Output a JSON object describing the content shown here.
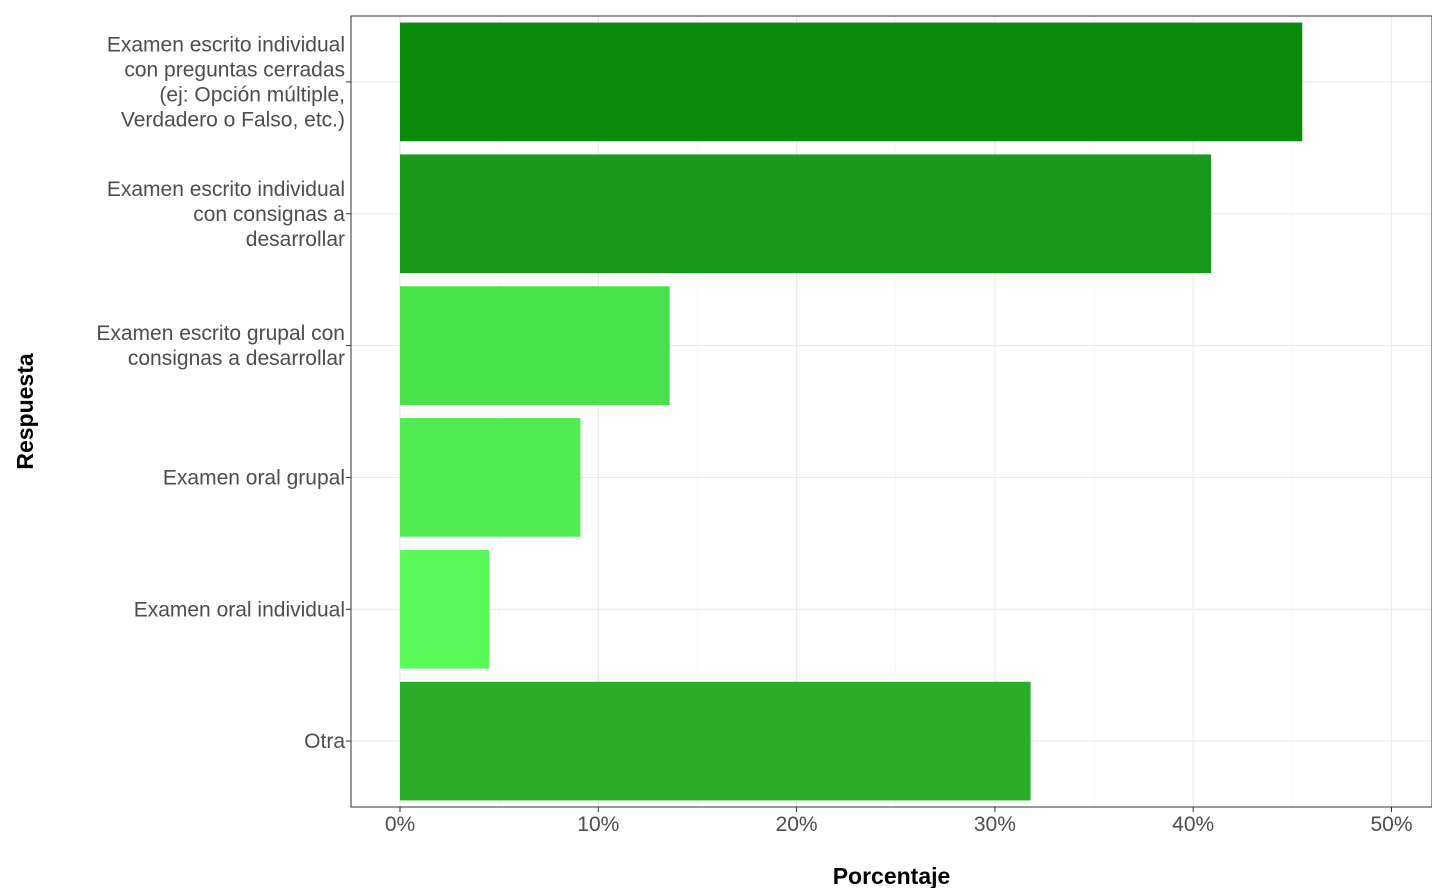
{
  "chart_data": {
    "type": "bar",
    "orientation": "horizontal",
    "xlabel": "Porcentaje",
    "ylabel": "Respuesta",
    "xlim": [
      0,
      50
    ],
    "x_ticks": [
      "0%",
      "10%",
      "20%",
      "30%",
      "40%",
      "50%"
    ],
    "grid": true,
    "categories": [
      [
        "Examen escrito individual",
        "con preguntas cerradas",
        "(ej: Opción múltiple,",
        "Verdadero o Falso, etc.)"
      ],
      [
        "Examen escrito individual",
        "con consignas a",
        "desarrollar"
      ],
      [
        "Examen escrito grupal con",
        "consignas a desarrollar"
      ],
      [
        "Examen oral grupal"
      ],
      [
        "Examen oral individual"
      ],
      [
        "Otra"
      ]
    ],
    "values": [
      45.5,
      40.9,
      13.6,
      9.1,
      4.5,
      31.8
    ],
    "colors": [
      "#0a8a0a",
      "#1a9a1a",
      "#4ae24a",
      "#52ec52",
      "#5afa5a",
      "#2aae2a"
    ]
  }
}
